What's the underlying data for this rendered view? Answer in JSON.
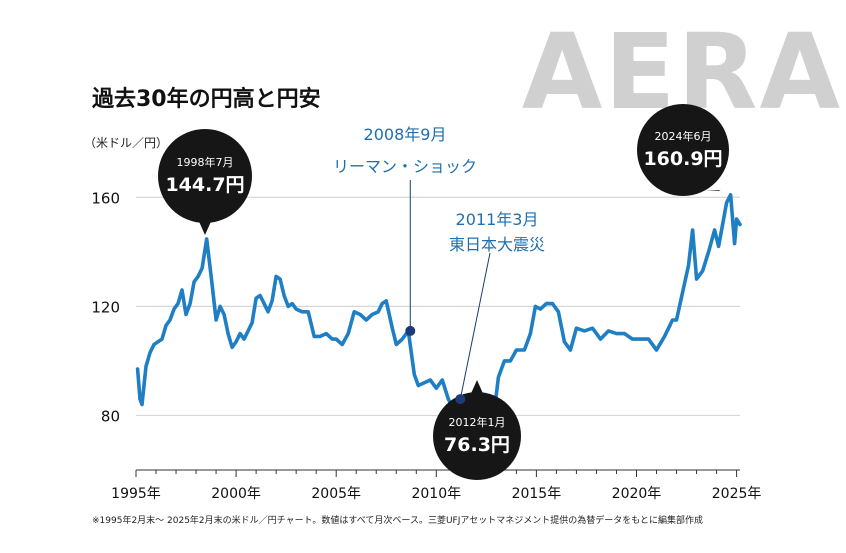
{
  "brand": {
    "logo": "AERA",
    "color": "#cfcfcf"
  },
  "chart_data": {
    "type": "line",
    "title": "過去30年の円高と円安",
    "unit_label": "（米ドル／円）",
    "footnote": "※1995年2月末〜 2025年2月末の米ドル／円チャート。数値はすべて月次ベース。三菱UFJアセットマネジメント提供の為替データをもとに編集部作成",
    "line_color": "#1f7fc4",
    "grid": true,
    "xlim": [
      1995.0,
      2025.17
    ],
    "ylim": [
      60,
      170
    ],
    "y_ticks": [
      {
        "value": 80,
        "label": "80"
      },
      {
        "value": 120,
        "label": "120"
      },
      {
        "value": 160,
        "label": "160"
      }
    ],
    "x_ticks": [
      {
        "value": 1995,
        "label": "1995年"
      },
      {
        "value": 2000,
        "label": "2000年"
      },
      {
        "value": 2005,
        "label": "2005年"
      },
      {
        "value": 2010,
        "label": "2010年"
      },
      {
        "value": 2015,
        "label": "2015年"
      },
      {
        "value": 2020,
        "label": "2020年"
      },
      {
        "value": 2025,
        "label": "2025年"
      }
    ],
    "series": [
      {
        "x": [
          1995.08,
          1995.2,
          1995.3,
          1995.5,
          1995.7,
          1995.9,
          1996.1,
          1996.3,
          1996.5,
          1996.7,
          1996.9,
          1997.1,
          1997.3,
          1997.5,
          1997.7,
          1997.9,
          1998.1,
          1998.3,
          1998.53,
          1998.8,
          1999.0,
          1999.2,
          1999.4,
          1999.6,
          1999.8,
          2000.0,
          2000.2,
          2000.4,
          2000.6,
          2000.8,
          2001.0,
          2001.2,
          2001.4,
          2001.6,
          2001.8,
          2002.0,
          2002.2,
          2002.4,
          2002.6,
          2002.8,
          2003.0,
          2003.3,
          2003.6,
          2003.9,
          2004.2,
          2004.5,
          2004.8,
          2005.0,
          2005.3,
          2005.6,
          2005.9,
          2006.2,
          2006.5,
          2006.8,
          2007.1,
          2007.3,
          2007.5,
          2007.8,
          2008.0,
          2008.3,
          2008.6,
          2008.9,
          2009.1,
          2009.4,
          2009.7,
          2010.0,
          2010.3,
          2010.6,
          2010.9,
          2011.1,
          2011.3,
          2011.6,
          2011.9,
          2012.08,
          2012.3,
          2012.6,
          2012.9,
          2013.1,
          2013.4,
          2013.7,
          2014.0,
          2014.4,
          2014.7,
          2014.95,
          2015.2,
          2015.5,
          2015.8,
          2016.1,
          2016.4,
          2016.7,
          2017.0,
          2017.4,
          2017.8,
          2018.2,
          2018.6,
          2019.0,
          2019.4,
          2019.8,
          2020.2,
          2020.6,
          2021.0,
          2021.4,
          2021.8,
          2022.0,
          2022.3,
          2022.6,
          2022.8,
          2023.0,
          2023.3,
          2023.6,
          2023.9,
          2024.1,
          2024.3,
          2024.5,
          2024.7,
          2024.9,
          2025.0,
          2025.17
        ],
        "y": [
          97,
          86,
          84,
          98,
          103,
          106,
          107,
          108,
          113,
          115,
          119,
          121,
          126,
          117,
          121,
          129,
          131,
          134,
          144.7,
          128,
          115,
          120,
          117,
          110,
          105,
          107,
          110,
          108,
          111,
          114,
          123,
          124,
          121,
          118,
          122,
          131,
          130,
          124,
          120,
          121,
          119,
          118,
          118,
          109,
          109,
          110,
          108,
          108,
          106,
          110,
          118,
          117,
          115,
          117,
          118,
          121,
          122,
          112,
          106,
          108,
          111,
          95,
          91,
          92,
          93,
          90,
          93,
          86,
          82,
          82,
          78,
          79,
          77,
          76.3,
          80,
          79,
          82,
          94,
          100,
          100,
          104,
          104,
          110,
          120,
          119,
          121,
          121,
          118,
          107,
          104,
          112,
          111,
          112,
          108,
          111,
          110,
          110,
          108,
          108,
          108,
          104,
          109,
          115,
          115,
          125,
          135,
          148,
          130,
          133,
          140,
          148,
          142,
          150,
          158,
          160.9,
          143,
          152,
          150
        ]
      }
    ],
    "annotations": [
      {
        "id": "1998",
        "date": "1998年7月",
        "value": "144.7円",
        "x": 1998.53,
        "y": 144.7,
        "style": "bubble"
      },
      {
        "id": "2012",
        "date": "2012年1月",
        "value": "76.3円",
        "x": 2012.08,
        "y": 76.3,
        "style": "bubble"
      },
      {
        "id": "2024",
        "date": "2024年6月",
        "value": "160.9円",
        "x": 2024.5,
        "y": 160.9,
        "style": "bubble"
      },
      {
        "id": "2008",
        "line1": "2008年9月",
        "line2": "リーマン・ショック",
        "x": 2008.7,
        "y": 111,
        "style": "event"
      },
      {
        "id": "2011",
        "line1": "2011年3月",
        "line2": "東日本大震災",
        "x": 2011.2,
        "y": 86,
        "style": "event"
      }
    ]
  }
}
